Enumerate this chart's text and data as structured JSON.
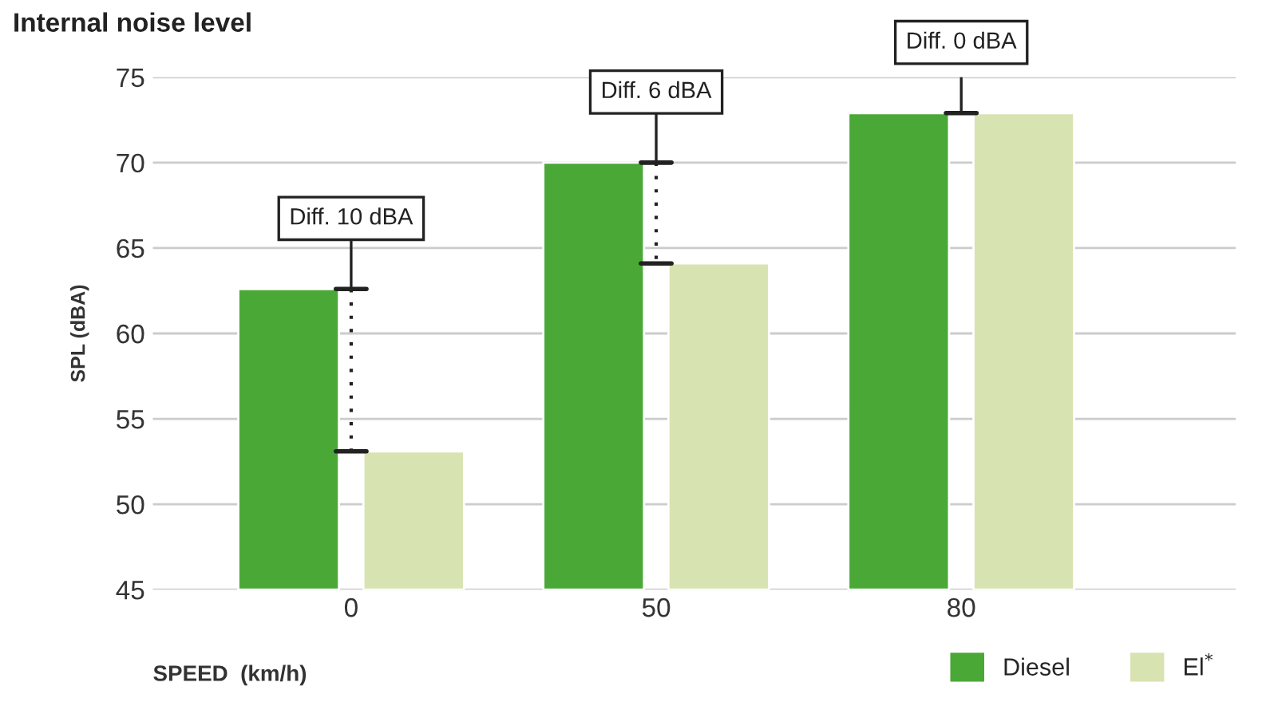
{
  "chart_data": {
    "type": "bar",
    "title": "Internal noise level",
    "xlabel": "SPEED  (km/h)",
    "ylabel": "SPL (dBA)",
    "categories": [
      "0",
      "50",
      "80"
    ],
    "series": [
      {
        "name": "Diesel",
        "color": "#4aa837",
        "values": [
          62.6,
          70,
          72.9
        ]
      },
      {
        "name": "El$^{*}$",
        "color": "#d8e3b2",
        "values": [
          53.1,
          64.1,
          72.9
        ]
      }
    ],
    "ylim": [
      45,
      75
    ],
    "yticks": [
      45,
      50,
      55,
      60,
      65,
      70,
      75
    ],
    "grid": "y",
    "legend": "bottom right",
    "annotations": [
      "Diff. 10 dBA",
      "Diff. 6 dBA",
      "Diff. 0 dBA"
    ]
  }
}
